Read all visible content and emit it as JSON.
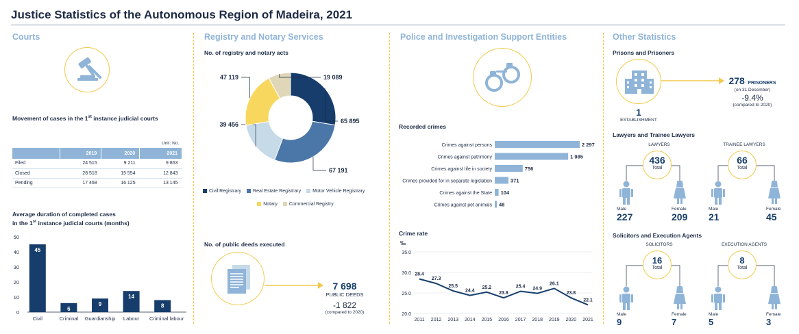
{
  "title": "Justice Statistics of the Autonomous Region of Madeira, 2021",
  "colors": {
    "navy": "#163d6b",
    "mid_blue": "#4b77a8",
    "light_blue": "#8fb4d8",
    "pale_blue": "#c6dae8",
    "yellow": "#f7d75e",
    "beige": "#e0d7b8",
    "accent_yellow": "#f2c94c"
  },
  "courts": {
    "header": "Courts",
    "gavel_icon": "gavel-icon",
    "movement_title": "Movement of cases in the 1st instance judicial courts",
    "movement_title_a": "Movement of cases in the 1",
    "movement_title_sup": "st",
    "movement_title_b": " instance judicial courts",
    "unit": "Unit: No.",
    "table": {
      "columns": [
        "",
        "2019",
        "2020",
        "2021"
      ],
      "rows": [
        {
          "label": "Filed",
          "v2019": "24 515",
          "v2020": "9 211",
          "v2021": "9 863"
        },
        {
          "label": "Closed",
          "v2019": "28 518",
          "v2020": "15 554",
          "v2021": "12 843"
        },
        {
          "label": "Pending",
          "v2019": "17 468",
          "v2020": "16 125",
          "v2021": "13 145"
        }
      ]
    },
    "duration_title_1": "Average duration of completed cases",
    "duration_title_2a": "in the 1",
    "duration_title_2sup": "st",
    "duration_title_2b": " instance judicial courts (months)"
  },
  "registry": {
    "header": "Registry and Notary Services",
    "acts_title": "No. of registry and notary acts",
    "deeds_title": "No. of public deeds executed",
    "document_icon": "document-icon",
    "deeds_value": "7 698",
    "deeds_label": "PUBLIC DEEDS",
    "deeds_change": "-1 822",
    "deeds_change_note": "(compared to 2020)"
  },
  "police": {
    "header": "Police and Investigation Support Entities",
    "handcuffs_icon": "handcuffs-icon",
    "crimes_title": "Recorded crimes",
    "crime_rate_title": "Crime rate",
    "crime_rate_unit": "‰"
  },
  "other": {
    "header": "Other Statistics",
    "prisons_title": "Prisons and Prisoners",
    "building_icon": "building-icon",
    "establishment_value": "1",
    "establishment_label": "ESTABLISHMENT",
    "prisoners_value": "278",
    "prisoners_label": "PRISONERS",
    "prisoners_note": "(on 31 December)",
    "prisoners_change": "-9.4%",
    "prisoners_change_note": "(compared to 2020)",
    "lawyers_title": "Lawyers and Trainee Lawyers",
    "lawyers": {
      "label": "LAWYERS",
      "total": "436",
      "total_label": "Total",
      "male_label": "Male",
      "male": "227",
      "female_label": "Female",
      "female": "209"
    },
    "trainee": {
      "label": "TRAINEE LAWYERS",
      "total": "66",
      "total_label": "Total",
      "male_label": "Male",
      "male": "21",
      "female_label": "Female",
      "female": "45"
    },
    "solicitors_title": "Solicitors and Execution Agents",
    "solicitors": {
      "label": "SOLICITORS",
      "total": "16",
      "total_label": "Total",
      "male_label": "Male",
      "male": "9",
      "female_label": "Female",
      "female": "7"
    },
    "agents": {
      "label": "EXECUTION AGENTS",
      "total": "8",
      "total_label": "Total",
      "male_label": "Male",
      "male": "5",
      "female_label": "Female",
      "female": "3"
    },
    "male_icon": "male-person-icon",
    "female_icon": "female-person-icon"
  },
  "chart_data": [
    {
      "id": "duration",
      "type": "bar",
      "categories": [
        "Civil",
        "Criminal",
        "Guardianship",
        "Labour",
        "Criminal labour"
      ],
      "values": [
        45,
        6,
        9,
        14,
        8
      ],
      "ylim": [
        0,
        50
      ],
      "yticks": [
        0,
        10,
        20,
        30,
        40,
        50
      ],
      "grid": false
    },
    {
      "id": "acts",
      "type": "pie",
      "categories": [
        "Civil Registrary",
        "Real Estate Registrary",
        "Motor Vehicle Registrary",
        "Notary",
        "Commercial Registry"
      ],
      "values": [
        65895,
        67191,
        39456,
        47119,
        19089
      ],
      "labels": [
        "65 895",
        "67 191",
        "39 456",
        "47 119",
        "19 089"
      ],
      "colors": [
        "#163d6b",
        "#4b77a8",
        "#c6dae8",
        "#f7d75e",
        "#e0d7b8"
      ]
    },
    {
      "id": "crimes",
      "type": "bar",
      "orientation": "horizontal",
      "categories": [
        "Crimes against persons",
        "Crimes against patrimony",
        "Crimes against life in society",
        "Crimes provided for in separate legislation",
        "Crimes against the State",
        "Crimes against pet animals"
      ],
      "values": [
        2297,
        1985,
        756,
        371,
        104,
        48
      ],
      "labels": [
        "2 297",
        "1 985",
        "756",
        "371",
        "104",
        "48"
      ]
    },
    {
      "id": "crime_rate",
      "type": "line",
      "x": [
        "2011",
        "2012",
        "2013",
        "2014",
        "2015",
        "2016",
        "2017",
        "2018",
        "2019",
        "2020",
        "2021"
      ],
      "y": [
        28.4,
        27.3,
        25.5,
        24.4,
        25.2,
        23.8,
        25.4,
        24.9,
        26.1,
        23.8,
        22.1
      ],
      "ylim": [
        20.0,
        35.0
      ],
      "yticks": [
        "20.0",
        "25.0",
        "30.0",
        "35.0"
      ],
      "ylabel": "‰",
      "grid": true
    }
  ]
}
